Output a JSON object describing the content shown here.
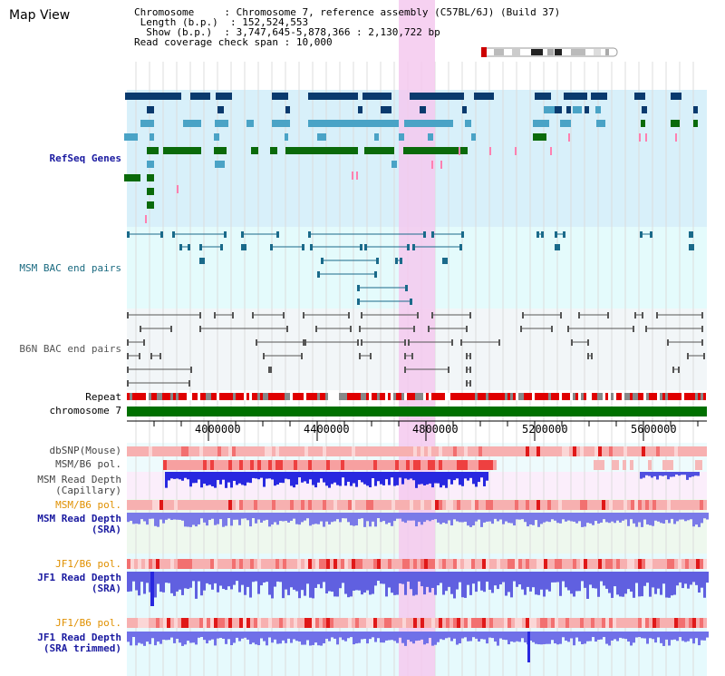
{
  "title": "Map View",
  "info": {
    "chromosome_key": "Chromosome",
    "chromosome_val": "Chromosome 7, reference assembly (C57BL/6J) (Build 37)",
    "length_key": "Length (b.p.)",
    "length_val": "152,524,553",
    "show_key": "Show (b.p.)",
    "show_val": "3,747,645-5,878,366 : 2,130,722 bp",
    "coverage_key": "Read coverage check span",
    "coverage_val": "10,000"
  },
  "tracks": {
    "refseq": "RefSeq Genes",
    "msm_bac": "MSM BAC end pairs",
    "b6n_bac": "B6N BAC end pairs",
    "repeat": "Repeat",
    "chromosome": "chromosome 7",
    "dbsnp": "dbSNP(Mouse)",
    "msm_b6_pol_1": "MSM/B6 pol.",
    "msm_depth_cap_1": "MSM Read Depth",
    "msm_depth_cap_2": "(Capillary)",
    "msm_b6_pol_2": "MSM/B6 pol.",
    "msm_depth_sra_1": "MSM Read Depth",
    "msm_depth_sra_2": "(SRA)",
    "jf1_b6_pol_1": "JF1/B6 pol.",
    "jf1_depth_sra_1": "JF1 Read Depth",
    "jf1_depth_sra_2": "(SRA)",
    "jf1_b6_pol_2": "JF1/B6 pol.",
    "jf1_depth_trim_1": "JF1 Read Depth",
    "jf1_depth_trim_2": "(SRA trimmed)"
  },
  "axis": {
    "ticks": [
      "4000000",
      "4400000",
      "4800000",
      "5200000",
      "5600000"
    ]
  },
  "colors": {
    "highlight": "#f5c9ef",
    "refseq_bg": "#d8f0fa",
    "bac_bg": "#e4fbfc",
    "b6n_bg": "#f2f6f8",
    "navy_gene": "#0a3a6e",
    "teal_gene": "#4aa3c6",
    "green_gene": "#0a6a0a",
    "chrom_bar": "#007000",
    "repeat": "#e00000",
    "depth_blue": "#2828e0"
  }
}
